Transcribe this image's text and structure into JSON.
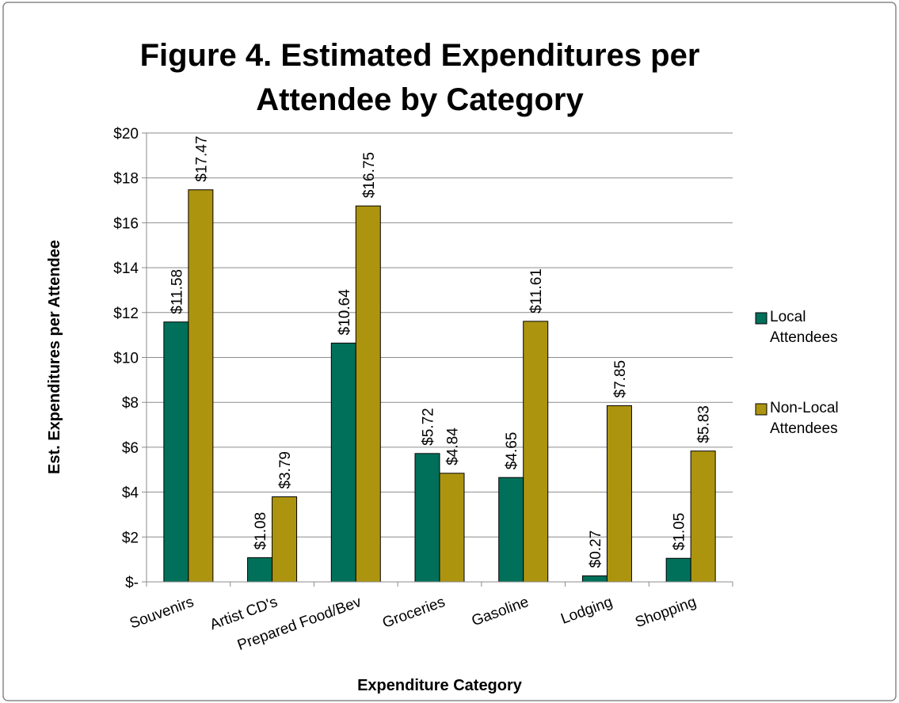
{
  "chart_data": {
    "type": "bar",
    "title": "Figure 4.  Estimated Expenditures per Attendee by Category",
    "x_label": "Expenditure Category",
    "y_label": "Est. Expenditures per Attendee",
    "categories": [
      "Souvenirs",
      "Artist CD's",
      "Prepared Food/Bev",
      "Groceries",
      "Gasoline",
      "Lodging",
      "Shopping"
    ],
    "series": [
      {
        "name": "Local Attendees",
        "color": "#00705a",
        "values": [
          11.58,
          1.08,
          10.64,
          5.72,
          4.65,
          0.27,
          1.05
        ],
        "value_labels": [
          "$11.58",
          "$1.08",
          "$10.64",
          "$5.72",
          "$4.65",
          "$0.27",
          "$1.05"
        ]
      },
      {
        "name": "Non-Local Attendees",
        "color": "#ad940f",
        "values": [
          17.47,
          3.79,
          16.75,
          4.84,
          11.61,
          7.85,
          5.83
        ],
        "value_labels": [
          "$17.47",
          "$3.79",
          "$16.75",
          "$4.84",
          "$11.61",
          "$7.85",
          "$5.83"
        ]
      }
    ],
    "ylim": [
      0,
      20
    ],
    "yticks": [
      {
        "value": 0,
        "label": "$-"
      },
      {
        "value": 2,
        "label": "$2"
      },
      {
        "value": 4,
        "label": "$4"
      },
      {
        "value": 6,
        "label": "$6"
      },
      {
        "value": 8,
        "label": "$8"
      },
      {
        "value": 10,
        "label": "$10"
      },
      {
        "value": 12,
        "label": "$12"
      },
      {
        "value": 14,
        "label": "$14"
      },
      {
        "value": 16,
        "label": "$16"
      },
      {
        "value": 18,
        "label": "$18"
      },
      {
        "value": 20,
        "label": "$20"
      }
    ],
    "grid": true,
    "legend": "right"
  }
}
